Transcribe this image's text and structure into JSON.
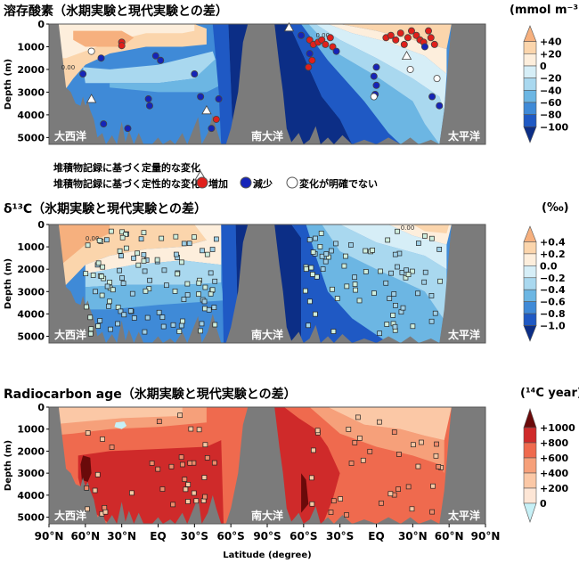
{
  "chart_data": [
    {
      "type": "heatmap",
      "title": "溶存酸素（氷期実験と現代実験との差）",
      "units": "(mmol m⁻³)",
      "ylabel": "Depth (m)",
      "yticks": [
        "0",
        "1000",
        "2000",
        "3000",
        "4000",
        "5000"
      ],
      "ylim": [
        0,
        5300
      ],
      "xlim": [
        90,
        -90,
        90
      ],
      "basins": {
        "atlantic": "大西洋",
        "southern": "南大洋",
        "pacific": "太平洋"
      },
      "contour_label": "0.00",
      "colorbar": {
        "ticks": [
          "+40",
          "+20",
          "0",
          "−20",
          "−40",
          "−60",
          "−80",
          "−100"
        ],
        "colors": [
          "#f6b07e",
          "#fbd5ac",
          "#fdeedc",
          "#d6eef7",
          "#a9d8ef",
          "#6cb6e3",
          "#3f8ad7",
          "#1f59c4",
          "#0c2e86"
        ]
      },
      "legend": {
        "triangle_label": "堆積物記録に基づく定量的な変化",
        "circle_label": "堆積物記録に基づく定性的な変化",
        "increase": "増加",
        "decrease": "減少",
        "unclear": "変化が明確でない",
        "increase_color": "#e0201b",
        "decrease_color": "#1524b8",
        "unclear_color": "#ffffff"
      },
      "markers": [
        {
          "basin": "atlantic",
          "lat": 55,
          "depth": 1200,
          "kind": "unclear"
        },
        {
          "basin": "atlantic",
          "lat": 47,
          "depth": 1500,
          "kind": "decrease"
        },
        {
          "basin": "atlantic",
          "lat": 30,
          "depth": 800,
          "kind": "increase"
        },
        {
          "basin": "atlantic",
          "lat": 30,
          "depth": 950,
          "kind": "increase"
        },
        {
          "basin": "atlantic",
          "lat": 62,
          "depth": 2200,
          "kind": "decrease"
        },
        {
          "basin": "atlantic",
          "lat": 2,
          "depth": 1400,
          "kind": "decrease"
        },
        {
          "basin": "atlantic",
          "lat": -2,
          "depth": 1600,
          "kind": "decrease"
        },
        {
          "basin": "atlantic",
          "lat": 45,
          "depth": 4400,
          "kind": "decrease"
        },
        {
          "basin": "atlantic",
          "lat": 25,
          "depth": 4600,
          "kind": "decrease"
        },
        {
          "basin": "atlantic",
          "lat": 8,
          "depth": 3300,
          "kind": "decrease"
        },
        {
          "basin": "atlantic",
          "lat": 7,
          "depth": 3600,
          "kind": "decrease"
        },
        {
          "basin": "atlantic",
          "lat": -30,
          "depth": 2200,
          "kind": "decrease"
        },
        {
          "basin": "atlantic",
          "lat": -35,
          "depth": 3200,
          "kind": "decrease"
        },
        {
          "basin": "atlantic",
          "lat": -44,
          "depth": 4600,
          "kind": "decrease"
        },
        {
          "basin": "atlantic",
          "lat": -50,
          "depth": 3300,
          "kind": "decrease"
        },
        {
          "basin": "atlantic",
          "lat": -48,
          "depth": 4200,
          "kind": "increase"
        },
        {
          "basin": "atlantic",
          "lat": 55,
          "depth": 3300,
          "kind": "triangle"
        },
        {
          "basin": "atlantic",
          "lat": -40,
          "depth": 3800,
          "kind": "triangle"
        },
        {
          "basin": "pacific",
          "lat": -72,
          "depth": 150,
          "kind": "triangle"
        },
        {
          "basin": "pacific",
          "lat": 25,
          "depth": 1400,
          "kind": "triangle"
        },
        {
          "basin": "pacific",
          "lat": -62,
          "depth": 500,
          "kind": "decrease"
        },
        {
          "basin": "pacific",
          "lat": -55,
          "depth": 700,
          "kind": "increase"
        },
        {
          "basin": "pacific",
          "lat": -52,
          "depth": 900,
          "kind": "increase"
        },
        {
          "basin": "pacific",
          "lat": -48,
          "depth": 800,
          "kind": "increase"
        },
        {
          "basin": "pacific",
          "lat": -45,
          "depth": 700,
          "kind": "increase"
        },
        {
          "basin": "pacific",
          "lat": -42,
          "depth": 900,
          "kind": "increase"
        },
        {
          "basin": "pacific",
          "lat": -38,
          "depth": 600,
          "kind": "increase"
        },
        {
          "basin": "pacific",
          "lat": -36,
          "depth": 1000,
          "kind": "increase"
        },
        {
          "basin": "pacific",
          "lat": -53,
          "depth": 1600,
          "kind": "increase"
        },
        {
          "basin": "pacific",
          "lat": -55,
          "depth": 1300,
          "kind": "decrease"
        },
        {
          "basin": "pacific",
          "lat": -56,
          "depth": 1900,
          "kind": "increase"
        },
        {
          "basin": "pacific",
          "lat": -33,
          "depth": 1200,
          "kind": "decrease"
        },
        {
          "basin": "pacific",
          "lat": -2,
          "depth": 2300,
          "kind": "decrease"
        },
        {
          "basin": "pacific",
          "lat": 0,
          "depth": 2700,
          "kind": "decrease"
        },
        {
          "basin": "pacific",
          "lat": -1,
          "depth": 3100,
          "kind": "decrease"
        },
        {
          "basin": "pacific",
          "lat": 0,
          "depth": 1900,
          "kind": "decrease"
        },
        {
          "basin": "pacific",
          "lat": -2,
          "depth": 3200,
          "kind": "unclear"
        },
        {
          "basin": "pacific",
          "lat": 8,
          "depth": 600,
          "kind": "increase"
        },
        {
          "basin": "pacific",
          "lat": 12,
          "depth": 500,
          "kind": "increase"
        },
        {
          "basin": "pacific",
          "lat": 16,
          "depth": 700,
          "kind": "increase"
        },
        {
          "basin": "pacific",
          "lat": 20,
          "depth": 400,
          "kind": "increase"
        },
        {
          "basin": "pacific",
          "lat": 23,
          "depth": 900,
          "kind": "increase"
        },
        {
          "basin": "pacific",
          "lat": 26,
          "depth": 600,
          "kind": "increase"
        },
        {
          "basin": "pacific",
          "lat": 29,
          "depth": 300,
          "kind": "increase"
        },
        {
          "basin": "pacific",
          "lat": 33,
          "depth": 500,
          "kind": "increase"
        },
        {
          "basin": "pacific",
          "lat": 36,
          "depth": 700,
          "kind": "increase"
        },
        {
          "basin": "pacific",
          "lat": 39,
          "depth": 800,
          "kind": "increase"
        },
        {
          "basin": "pacific",
          "lat": 43,
          "depth": 300,
          "kind": "increase"
        },
        {
          "basin": "pacific",
          "lat": 45,
          "depth": 600,
          "kind": "increase"
        },
        {
          "basin": "pacific",
          "lat": 48,
          "depth": 900,
          "kind": "increase"
        },
        {
          "basin": "pacific",
          "lat": 28,
          "depth": 2000,
          "kind": "unclear"
        },
        {
          "basin": "pacific",
          "lat": 40,
          "depth": 1000,
          "kind": "decrease"
        },
        {
          "basin": "pacific",
          "lat": 50,
          "depth": 2400,
          "kind": "unclear"
        },
        {
          "basin": "pacific",
          "lat": 46,
          "depth": 3200,
          "kind": "decrease"
        },
        {
          "basin": "pacific",
          "lat": 52,
          "depth": 3600,
          "kind": "decrease"
        }
      ]
    },
    {
      "type": "heatmap",
      "title": "δ¹³C（氷期実験と現代実験との差）",
      "units": "(‰)",
      "ylabel": "Depth (m)",
      "yticks": [
        "0",
        "1000",
        "2000",
        "3000",
        "4000",
        "5000"
      ],
      "ylim": [
        0,
        5300
      ],
      "xlim": [
        90,
        -90,
        90
      ],
      "basins": {
        "atlantic": "大西洋",
        "southern": "南大洋",
        "pacific": "太平洋"
      },
      "contour_label": "0.00",
      "colorbar": {
        "ticks": [
          "+0.4",
          "+0.2",
          "0.0",
          "−0.2",
          "−0.4",
          "−0.6",
          "−0.8",
          "−1.0"
        ],
        "colors": [
          "#f6b07e",
          "#fbd5ac",
          "#fdeedc",
          "#d6eef7",
          "#a9d8ef",
          "#6cb6e3",
          "#3f8ad7",
          "#1f59c4",
          "#0c2e86"
        ]
      }
    },
    {
      "type": "heatmap",
      "title": "Radiocarbon age（氷期実験と現代実験との差）",
      "units": "(¹⁴C year)",
      "ylabel": "Depth (m)",
      "xlabel": "Latitude (degree)",
      "xticks": [
        "90°N",
        "60°N",
        "30°N",
        "EQ",
        "30°S",
        "60°S",
        "90°S",
        "60°S",
        "30°S",
        "EQ",
        "30°N",
        "60°N",
        "90°N"
      ],
      "yticks": [
        "0",
        "1000",
        "2000",
        "3000",
        "4000",
        "5000"
      ],
      "ylim": [
        0,
        5300
      ],
      "xlim": [
        90,
        -90,
        90
      ],
      "basins": {
        "atlantic": "大西洋",
        "southern": "南大洋",
        "pacific": "太平洋"
      },
      "colorbar": {
        "ticks": [
          "+1000",
          "+800",
          "+600",
          "+400",
          "+200",
          "0"
        ],
        "colors": [
          "#6a0a0a",
          "#cf2a2a",
          "#ef6a4e",
          "#f6a07a",
          "#fbc8a6",
          "#fde6d6",
          "#c6f0f6"
        ]
      }
    }
  ]
}
